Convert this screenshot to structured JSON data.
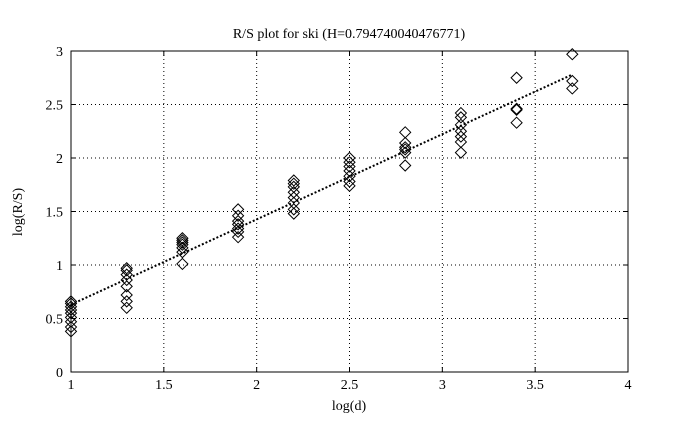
{
  "chart_data": {
    "type": "scatter",
    "title": "R/S plot for ski (H=0.794740040476771)",
    "xlabel": "log(d)",
    "ylabel": "log(R/S)",
    "xlim": [
      1,
      4
    ],
    "ylim": [
      0,
      3
    ],
    "grid": true,
    "xticks": [
      1,
      1.5,
      2,
      2.5,
      3,
      3.5,
      4
    ],
    "xtick_labels": [
      "1",
      "1.5",
      "2",
      "2.5",
      "3",
      "3.5",
      "4"
    ],
    "yticks": [
      0,
      0.5,
      1,
      1.5,
      2,
      2.5,
      3
    ],
    "ytick_labels": [
      "0",
      "0.5",
      "1",
      "1.5",
      "2",
      "2.5",
      "3"
    ],
    "marker": "diamond",
    "series": [
      {
        "points": [
          [
            1.0,
            0.38
          ],
          [
            1.0,
            0.42
          ],
          [
            1.0,
            0.47
          ],
          [
            1.0,
            0.51
          ],
          [
            1.0,
            0.55
          ],
          [
            1.0,
            0.58
          ],
          [
            1.0,
            0.61
          ],
          [
            1.0,
            0.64
          ],
          [
            1.0,
            0.66
          ],
          [
            1.3,
            0.6
          ],
          [
            1.3,
            0.66
          ],
          [
            1.3,
            0.72
          ],
          [
            1.3,
            0.8
          ],
          [
            1.3,
            0.86
          ],
          [
            1.3,
            0.91
          ],
          [
            1.3,
            0.95
          ],
          [
            1.3,
            0.97
          ],
          [
            1.6,
            1.01
          ],
          [
            1.6,
            1.12
          ],
          [
            1.6,
            1.16
          ],
          [
            1.6,
            1.19
          ],
          [
            1.6,
            1.21
          ],
          [
            1.6,
            1.23
          ],
          [
            1.6,
            1.25
          ],
          [
            1.9,
            1.26
          ],
          [
            1.9,
            1.31
          ],
          [
            1.9,
            1.34
          ],
          [
            1.9,
            1.38
          ],
          [
            1.9,
            1.41
          ],
          [
            1.9,
            1.46
          ],
          [
            1.9,
            1.52
          ],
          [
            2.2,
            1.48
          ],
          [
            2.2,
            1.52
          ],
          [
            2.2,
            1.58
          ],
          [
            2.2,
            1.63
          ],
          [
            2.2,
            1.68
          ],
          [
            2.2,
            1.73
          ],
          [
            2.2,
            1.76
          ],
          [
            2.2,
            1.79
          ],
          [
            2.5,
            1.74
          ],
          [
            2.5,
            1.78
          ],
          [
            2.5,
            1.83
          ],
          [
            2.5,
            1.88
          ],
          [
            2.5,
            1.92
          ],
          [
            2.5,
            1.96
          ],
          [
            2.5,
            2.0
          ],
          [
            2.8,
            1.93
          ],
          [
            2.8,
            2.05
          ],
          [
            2.8,
            2.08
          ],
          [
            2.8,
            2.1
          ],
          [
            2.8,
            2.14
          ],
          [
            2.8,
            2.24
          ],
          [
            3.1,
            2.05
          ],
          [
            3.1,
            2.15
          ],
          [
            3.1,
            2.2
          ],
          [
            3.1,
            2.25
          ],
          [
            3.1,
            2.31
          ],
          [
            3.1,
            2.38
          ],
          [
            3.1,
            2.42
          ],
          [
            3.4,
            2.33
          ],
          [
            3.4,
            2.45
          ],
          [
            3.4,
            2.46
          ],
          [
            3.4,
            2.75
          ],
          [
            3.7,
            2.65
          ],
          [
            3.7,
            2.72
          ],
          [
            3.7,
            2.97
          ]
        ]
      }
    ],
    "fit_line": {
      "style": "dotted",
      "slope": 0.79474,
      "x_range": [
        1.0,
        3.7
      ],
      "y_range": [
        0.63,
        2.78
      ]
    }
  }
}
